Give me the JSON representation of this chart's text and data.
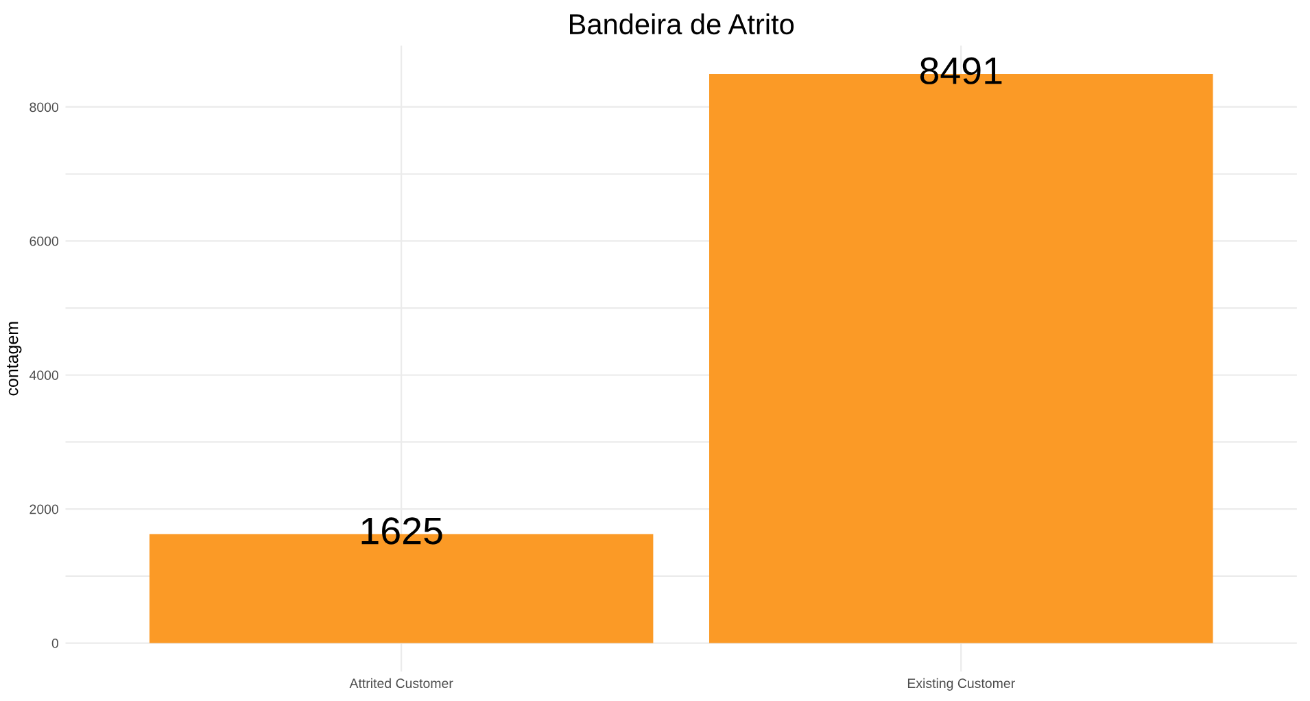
{
  "chart_data": {
    "type": "bar",
    "title": "Bandeira de Atrito",
    "ylabel": "contagem",
    "categories": [
      "Attrited Customer",
      "Existing Customer"
    ],
    "values": [
      1625,
      8491
    ],
    "color": "#fb9a26",
    "ylim": [
      -425,
      8916
    ],
    "yticks": [
      0,
      {
        "value": 1000,
        "label": null
      },
      2000,
      {
        "value": 3000,
        "label": null
      },
      4000,
      {
        "value": 5000,
        "label": null
      },
      6000,
      {
        "value": 7000,
        "label": null
      },
      8000
    ],
    "grid": true,
    "data_labels": true
  }
}
